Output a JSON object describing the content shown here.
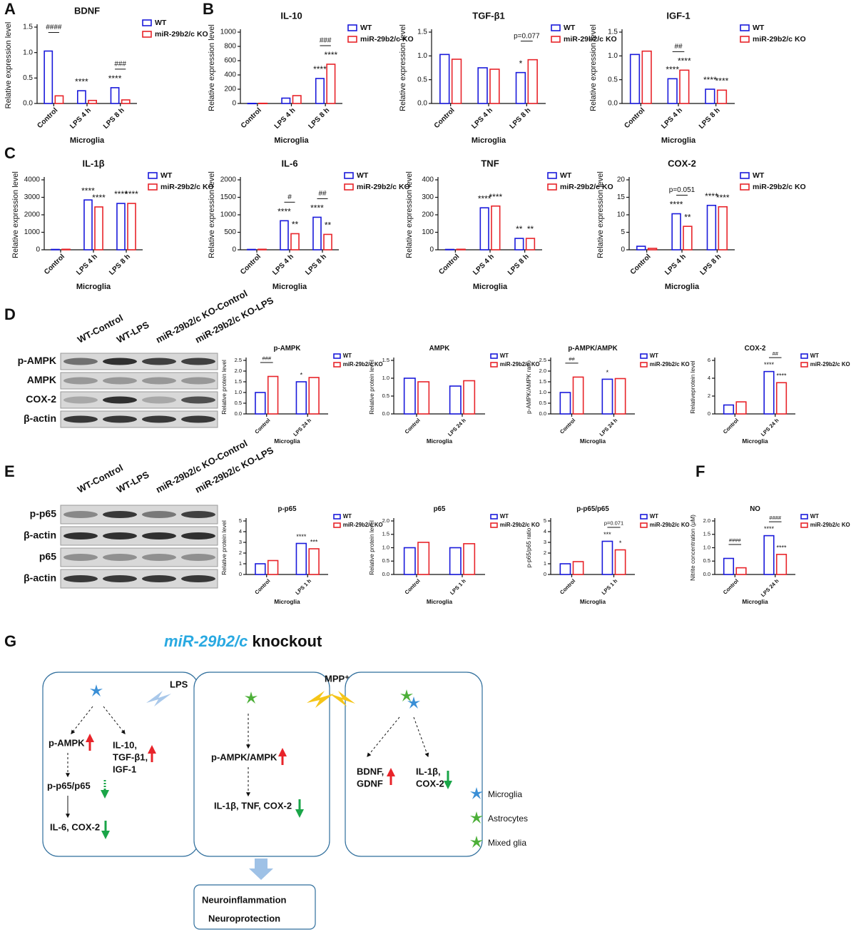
{
  "panel_labels": [
    "A",
    "B",
    "C",
    "D",
    "E",
    "F",
    "G"
  ],
  "chart_data": [
    {
      "type": "bar",
      "title": "BDNF",
      "y_label": "Relative expression level",
      "x_label": "Microglia",
      "categories": [
        "Control",
        "LPS 4 h",
        "LPS 8 h"
      ],
      "series": [
        {
          "name": "WT",
          "color": "#1a1adb",
          "values": [
            1.03,
            0.25,
            0.31
          ],
          "significance": [
            null,
            "****",
            "****"
          ]
        },
        {
          "name": "miR-29b2/c KO",
          "color": "#e8242a",
          "values": [
            0.15,
            0.06,
            0.07
          ],
          "significance": [
            null,
            null,
            null
          ]
        }
      ],
      "comparisons": [
        "####",
        null,
        "###"
      ],
      "ylim": [
        0,
        1.5
      ],
      "yticks": [
        {
          "value": 0,
          "label": "0.0"
        },
        {
          "value": 0.5,
          "label": "0.5"
        },
        {
          "value": 1,
          "label": "1.0"
        },
        {
          "value": 1.5,
          "label": "1.5"
        }
      ]
    },
    {
      "type": "bar",
      "title": "IL-10",
      "y_label": "Relative expression level",
      "x_label": "Microglia",
      "categories": [
        "Control",
        "LPS 4 h",
        "LPS 8 h"
      ],
      "series": [
        {
          "name": "WT",
          "color": "#1a1adb",
          "values": [
            2,
            75,
            350
          ],
          "significance": [
            null,
            null,
            "****"
          ]
        },
        {
          "name": "miR-29b2/c KO",
          "color": "#e8242a",
          "values": [
            3,
            110,
            550
          ],
          "significance": [
            null,
            null,
            "****"
          ]
        }
      ],
      "comparisons": [
        null,
        null,
        "###"
      ],
      "ylim": [
        0,
        1000
      ],
      "yticks": [
        0,
        200,
        400,
        600,
        800,
        1000
      ]
    },
    {
      "type": "bar",
      "title": "TGF-β1",
      "y_label": "Relative expression level",
      "x_label": "Microglia",
      "categories": [
        "Control",
        "LPS 4 h",
        "LPS 8 h"
      ],
      "series": [
        {
          "name": "WT",
          "color": "#1a1adb",
          "values": [
            1.03,
            0.75,
            0.65
          ],
          "significance": [
            null,
            null,
            "*"
          ]
        },
        {
          "name": "miR-29b2/c KO",
          "color": "#e8242a",
          "values": [
            0.93,
            0.72,
            0.92
          ],
          "significance": [
            null,
            null,
            null
          ]
        }
      ],
      "comparisons": [
        null,
        null,
        "p=0.077"
      ],
      "ylim": [
        0,
        1.5
      ],
      "yticks": [
        {
          "value": 0,
          "label": "0.0"
        },
        {
          "value": 0.5,
          "label": "0.5"
        },
        {
          "value": 1,
          "label": "1.0"
        },
        {
          "value": 1.5,
          "label": "1.5"
        }
      ]
    },
    {
      "type": "bar",
      "title": "IGF-1",
      "y_label": "Relative expression level",
      "x_label": "Microglia",
      "categories": [
        "Control",
        "LPS 4 h",
        "LPS 8 h"
      ],
      "series": [
        {
          "name": "WT",
          "color": "#1a1adb",
          "values": [
            1.03,
            0.52,
            0.3
          ],
          "significance": [
            null,
            "****",
            "****"
          ]
        },
        {
          "name": "miR-29b2/c KO",
          "color": "#e8242a",
          "values": [
            1.1,
            0.7,
            0.28
          ],
          "significance": [
            null,
            "****",
            "****"
          ]
        }
      ],
      "comparisons": [
        null,
        "##",
        null
      ],
      "ylim": [
        0,
        1.5
      ],
      "yticks": [
        {
          "value": 0,
          "label": "0.0"
        },
        {
          "value": 0.5,
          "label": "0.5"
        },
        {
          "value": 1,
          "label": "1.0"
        },
        {
          "value": 1.5,
          "label": "1.5"
        }
      ]
    },
    {
      "type": "bar",
      "title": "IL-1β",
      "y_label": "Relative expression level",
      "x_label": "Microglia",
      "categories": [
        "Control",
        "LPS 4 h",
        "LPS 8 h"
      ],
      "series": [
        {
          "name": "WT",
          "color": "#1a1adb",
          "values": [
            20,
            2850,
            2650
          ],
          "significance": [
            null,
            "****",
            "****"
          ]
        },
        {
          "name": "miR-29b2/c KO",
          "color": "#e8242a",
          "values": [
            30,
            2450,
            2650
          ],
          "significance": [
            null,
            "****",
            "****"
          ]
        }
      ],
      "comparisons": [
        null,
        null,
        null
      ],
      "ylim": [
        0,
        4000
      ],
      "yticks": [
        0,
        1000,
        2000,
        3000,
        4000
      ]
    },
    {
      "type": "bar",
      "title": "IL-6",
      "y_label": "Relative expression level",
      "x_label": "Microglia",
      "categories": [
        "Control",
        "LPS 4 h",
        "LPS 8 h"
      ],
      "series": [
        {
          "name": "WT",
          "color": "#1a1adb",
          "values": [
            10,
            830,
            930
          ],
          "significance": [
            null,
            "****",
            "****"
          ]
        },
        {
          "name": "miR-29b2/c KO",
          "color": "#e8242a",
          "values": [
            15,
            460,
            440
          ],
          "significance": [
            null,
            "**",
            "**"
          ]
        }
      ],
      "comparisons": [
        null,
        "#",
        "##"
      ],
      "ylim": [
        0,
        2000
      ],
      "yticks": [
        0,
        500,
        1000,
        1500,
        2000
      ]
    },
    {
      "type": "bar",
      "title": "TNF",
      "y_label": "Relative expression level",
      "x_label": "Microglia",
      "categories": [
        "Control",
        "LPS 4 h",
        "LPS 8 h"
      ],
      "series": [
        {
          "name": "WT",
          "color": "#1a1adb",
          "values": [
            2,
            240,
            65
          ],
          "significance": [
            null,
            "****",
            "**"
          ]
        },
        {
          "name": "miR-29b2/c KO",
          "color": "#e8242a",
          "values": [
            3,
            250,
            65
          ],
          "significance": [
            null,
            "****",
            "**"
          ]
        }
      ],
      "comparisons": [
        null,
        null,
        null
      ],
      "ylim": [
        0,
        400
      ],
      "yticks": [
        0,
        100,
        200,
        300,
        400
      ]
    },
    {
      "type": "bar",
      "title": "COX-2",
      "y_label": "Relative expression level",
      "x_label": "Microglia",
      "categories": [
        "Control",
        "LPS 4 h",
        "LPS 8 h"
      ],
      "series": [
        {
          "name": "WT",
          "color": "#1a1adb",
          "values": [
            1,
            10.3,
            12.7
          ],
          "significance": [
            null,
            "****",
            "****"
          ]
        },
        {
          "name": "miR-29b2/c KO",
          "color": "#e8242a",
          "values": [
            0.4,
            6.7,
            12.3
          ],
          "significance": [
            null,
            "**",
            "****"
          ]
        }
      ],
      "comparisons": [
        null,
        "p=0.051",
        null
      ],
      "ylim": [
        0,
        20
      ],
      "yticks": [
        0,
        5,
        10,
        15,
        20
      ]
    },
    {
      "type": "bar",
      "title": "p-AMPK",
      "y_label": "Relative protein level",
      "x_label": "Microglia",
      "categories": [
        "Control",
        "LPS 24 h"
      ],
      "series": [
        {
          "name": "WT",
          "color": "#1a1adb",
          "values": [
            1.0,
            1.5
          ],
          "significance": [
            null,
            "*"
          ]
        },
        {
          "name": "miR-29b2/c KO",
          "color": "#e8242a",
          "values": [
            1.75,
            1.7
          ],
          "significance": [
            null,
            null
          ]
        }
      ],
      "comparisons": [
        "###",
        null
      ],
      "ylim": [
        0,
        2.5
      ],
      "yticks": [
        {
          "value": 0,
          "label": "0.0"
        },
        {
          "value": 0.5,
          "label": "0.5"
        },
        {
          "value": 1,
          "label": "1.0"
        },
        {
          "value": 1.5,
          "label": "1.5"
        },
        {
          "value": 2,
          "label": "2.0"
        },
        {
          "value": 2.5,
          "label": "2.5"
        }
      ]
    },
    {
      "type": "bar",
      "title": "AMPK",
      "y_label": "Relative protein level",
      "x_label": "Microglia",
      "categories": [
        "Control",
        "LPS 24 h"
      ],
      "series": [
        {
          "name": "WT",
          "color": "#1a1adb",
          "values": [
            1.0,
            0.78
          ],
          "significance": [
            null,
            null
          ]
        },
        {
          "name": "miR-29b2/c KO",
          "color": "#e8242a",
          "values": [
            0.9,
            0.93
          ],
          "significance": [
            null,
            null
          ]
        }
      ],
      "comparisons": [
        null,
        null
      ],
      "ylim": [
        0,
        1.5
      ],
      "yticks": [
        {
          "value": 0,
          "label": "0.0"
        },
        {
          "value": 0.5,
          "label": "0.5"
        },
        {
          "value": 1,
          "label": "1.0"
        },
        {
          "value": 1.5,
          "label": "1.5"
        }
      ]
    },
    {
      "type": "bar",
      "title": "p-AMPK/AMPK",
      "y_label": "p-AMPK/AMPK ratio",
      "x_label": "Microglia",
      "categories": [
        "Control",
        "LPS 24 h"
      ],
      "series": [
        {
          "name": "WT",
          "color": "#1a1adb",
          "values": [
            1.0,
            1.62
          ],
          "significance": [
            null,
            "*"
          ]
        },
        {
          "name": "miR-29b2/c KO",
          "color": "#e8242a",
          "values": [
            1.72,
            1.65
          ],
          "significance": [
            null,
            null
          ]
        }
      ],
      "comparisons": [
        "##",
        null
      ],
      "ylim": [
        0,
        2.5
      ],
      "yticks": [
        {
          "value": 0,
          "label": "0.0"
        },
        {
          "value": 0.5,
          "label": "0.5"
        },
        {
          "value": 1,
          "label": "1.0"
        },
        {
          "value": 1.5,
          "label": "1.5"
        },
        {
          "value": 2,
          "label": "2.0"
        },
        {
          "value": 2.5,
          "label": "2.5"
        }
      ]
    },
    {
      "type": "bar",
      "title": "COX-2",
      "y_label": "Relativeprotein level",
      "x_label": "Microglia",
      "categories": [
        "Control",
        "LPS 24 h"
      ],
      "series": [
        {
          "name": "WT",
          "color": "#1a1adb",
          "values": [
            1.0,
            4.75
          ],
          "significance": [
            null,
            "****"
          ]
        },
        {
          "name": "miR-29b2/c KO",
          "color": "#e8242a",
          "values": [
            1.35,
            3.5
          ],
          "significance": [
            null,
            "****"
          ]
        }
      ],
      "comparisons": [
        null,
        "##"
      ],
      "ylim": [
        0,
        6
      ],
      "yticks": [
        0,
        2,
        4,
        6
      ]
    },
    {
      "type": "bar",
      "title": "p-p65",
      "y_label": "Relative protein level",
      "x_label": "Microglia",
      "categories": [
        "Control",
        "LPS 1 h"
      ],
      "series": [
        {
          "name": "WT",
          "color": "#1a1adb",
          "values": [
            1.0,
            2.9
          ],
          "significance": [
            null,
            "****"
          ]
        },
        {
          "name": "miR-29b2/c KO",
          "color": "#e8242a",
          "values": [
            1.3,
            2.4
          ],
          "significance": [
            null,
            "***"
          ]
        }
      ],
      "comparisons": [
        null,
        null
      ],
      "ylim": [
        0,
        5
      ],
      "yticks": [
        0,
        1,
        2,
        3,
        4,
        5
      ]
    },
    {
      "type": "bar",
      "title": "p65",
      "y_label": "Relative protein level",
      "x_label": "Microglia",
      "categories": [
        "Control",
        "LPS 1 h"
      ],
      "series": [
        {
          "name": "WT",
          "color": "#1a1adb",
          "values": [
            1.0,
            1.0
          ],
          "significance": [
            null,
            null
          ]
        },
        {
          "name": "miR-29b2/c KO",
          "color": "#e8242a",
          "values": [
            1.2,
            1.15
          ],
          "significance": [
            null,
            null
          ]
        }
      ],
      "comparisons": [
        null,
        null
      ],
      "ylim": [
        0,
        2
      ],
      "yticks": [
        {
          "value": 0,
          "label": "0.0"
        },
        {
          "value": 0.5,
          "label": "0.5"
        },
        {
          "value": 1,
          "label": "1.0"
        },
        {
          "value": 1.5,
          "label": "1.5"
        },
        {
          "value": 2,
          "label": "2.0"
        }
      ]
    },
    {
      "type": "bar",
      "title": "p-p65/p65",
      "y_label": "p-p65/p65 ratio",
      "x_label": "Microglia",
      "categories": [
        "Control",
        "LPS 1 h"
      ],
      "series": [
        {
          "name": "WT",
          "color": "#1a1adb",
          "values": [
            1.0,
            3.1
          ],
          "significance": [
            null,
            "***"
          ]
        },
        {
          "name": "miR-29b2/c KO",
          "color": "#e8242a",
          "values": [
            1.2,
            2.3
          ],
          "significance": [
            null,
            "*"
          ]
        }
      ],
      "comparisons": [
        null,
        "p=0.071"
      ],
      "ylim": [
        0,
        5
      ],
      "yticks": [
        0,
        1,
        2,
        3,
        4,
        5
      ]
    },
    {
      "type": "bar",
      "title": "NO",
      "y_label": "Nitrite concentration (μM)",
      "x_label": "Microglia",
      "categories": [
        "Control",
        "LPS 24 h"
      ],
      "series": [
        {
          "name": "WT",
          "color": "#1a1adb",
          "values": [
            0.6,
            1.45
          ],
          "significance": [
            null,
            "****"
          ]
        },
        {
          "name": "miR-29b2/c KO",
          "color": "#e8242a",
          "values": [
            0.25,
            0.75
          ],
          "significance": [
            null,
            "****"
          ]
        }
      ],
      "comparisons": [
        "####",
        "####"
      ],
      "ylim": [
        0,
        2
      ],
      "yticks": [
        {
          "value": 0,
          "label": "0.0"
        },
        {
          "value": 0.5,
          "label": "0.5"
        },
        {
          "value": 1,
          "label": "1.0"
        },
        {
          "value": 1.5,
          "label": "1.5"
        },
        {
          "value": 2,
          "label": "2.0"
        }
      ]
    }
  ],
  "blots": [
    {
      "lanes": [
        "WT-Control",
        "WT-LPS",
        "miR-29b2/c KO-Control",
        "miR-29b2/c KO-LPS"
      ],
      "rows": [
        "p-AMPK",
        "AMPK",
        "COX-2",
        "β-actin"
      ]
    },
    {
      "lanes": [
        "WT-Control",
        "WT-LPS",
        "miR-29b2/c KO-Control",
        "miR-29b2/c KO-LPS"
      ],
      "rows": [
        "p-p65",
        "β-actin",
        "p65",
        "β-actin"
      ]
    }
  ],
  "diagram": {
    "title_gene": "miR-29b2/c",
    "title_rest": "knockout",
    "lps": "LPS",
    "mpp": "MPP⁺",
    "box1": [
      "p-AMPK",
      "IL-10,",
      "TGF-β1,",
      "IGF-1",
      "p-p65/p65",
      "IL-6, COX-2"
    ],
    "box2": [
      "p-AMPK/AMPK",
      "IL-1β, TNF, COX-2"
    ],
    "box3": [
      "BDNF,",
      "GDNF",
      "IL-1β,",
      "COX-2"
    ],
    "legend": [
      "Microglia",
      "Astrocytes",
      "Mixed glia"
    ],
    "outcome": [
      "Neuroinflammation",
      "Neuroprotection"
    ]
  }
}
